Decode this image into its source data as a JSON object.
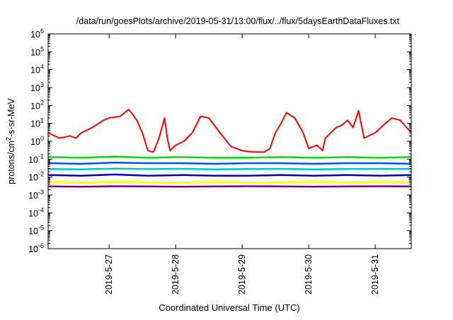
{
  "chart_data": {
    "type": "line",
    "title": "/data/run/goesPlots/archive/2019-05-31/13:00/flux/../flux/5daysEarthDataFluxes.txt",
    "xlabel": "Coordinated Universal Time (UTC)",
    "ylabel": {
      "base": "protons/cm",
      "sup": "2",
      "rest": "-s-sr-MeV"
    },
    "x_scale": "time",
    "xlim": [
      "2019-05-26 02:00",
      "2019-05-31 13:00"
    ],
    "x_ticks": [
      {
        "t": "2019-05-27 00:00",
        "label": "2019-5-27"
      },
      {
        "t": "2019-05-28 00:00",
        "label": "2019-5-28"
      },
      {
        "t": "2019-05-29 00:00",
        "label": "2019-5-29"
      },
      {
        "t": "2019-05-30 00:00",
        "label": "2019-5-30"
      },
      {
        "t": "2019-05-31 00:00",
        "label": "2019-5-31"
      }
    ],
    "y_scale": "log",
    "ylim": [
      1e-06,
      1000000.0
    ],
    "y_ticks": [
      {
        "base": "10",
        "exp": "-6",
        "value": 1e-06
      },
      {
        "base": "10",
        "exp": "-5",
        "value": 1e-05
      },
      {
        "base": "10",
        "exp": "-4",
        "value": 0.0001
      },
      {
        "base": "10",
        "exp": "-3",
        "value": 0.001
      },
      {
        "base": "10",
        "exp": "-2",
        "value": 0.01
      },
      {
        "base": "10",
        "exp": "-1",
        "value": 0.1
      },
      {
        "base": "10",
        "exp": "0",
        "value": 1
      },
      {
        "base": "10",
        "exp": "1",
        "value": 10
      },
      {
        "base": "10",
        "exp": "2",
        "value": 100
      },
      {
        "base": "10",
        "exp": "3",
        "value": 1000
      },
      {
        "base": "10",
        "exp": "4",
        "value": 10000
      },
      {
        "base": "10",
        "exp": "5",
        "value": 100000
      },
      {
        "base": "10",
        "exp": "6",
        "value": 1000000
      }
    ],
    "grid": false,
    "series": [
      {
        "color": "#ff0000",
        "x": [
          "2019-05-26 02:00",
          "2019-05-26 06:00",
          "2019-05-26 10:00",
          "2019-05-26 12:00",
          "2019-05-26 14:00",
          "2019-05-26 18:00",
          "2019-05-26 22:00",
          "2019-05-27 00:00",
          "2019-05-27 04:00",
          "2019-05-27 07:00",
          "2019-05-27 08:00",
          "2019-05-27 10:00",
          "2019-05-27 12:00",
          "2019-05-27 14:00",
          "2019-05-27 16:00",
          "2019-05-27 18:00",
          "2019-05-27 20:00",
          "2019-05-27 21:00",
          "2019-05-27 22:00",
          "2019-05-28 00:00",
          "2019-05-28 03:00",
          "2019-05-28 06:00",
          "2019-05-28 09:00",
          "2019-05-28 12:00",
          "2019-05-28 16:00",
          "2019-05-28 20:00",
          "2019-05-29 00:00",
          "2019-05-29 04:00",
          "2019-05-29 08:00",
          "2019-05-29 10:00",
          "2019-05-29 12:00",
          "2019-05-29 14:00",
          "2019-05-29 16:00",
          "2019-05-29 19:00",
          "2019-05-29 22:00",
          "2019-05-30 00:00",
          "2019-05-30 03:00",
          "2019-05-30 05:00",
          "2019-05-30 06:00",
          "2019-05-30 08:00",
          "2019-05-30 10:00",
          "2019-05-30 12:00",
          "2019-05-30 14:00",
          "2019-05-30 16:00",
          "2019-05-30 18:00",
          "2019-05-30 20:00",
          "2019-05-31 00:00",
          "2019-05-31 03:00",
          "2019-05-31 06:00",
          "2019-05-31 09:00",
          "2019-05-31 13:00"
        ],
        "y": [
          3,
          1.5,
          2,
          1.5,
          3,
          6,
          15,
          20,
          25,
          60,
          40,
          15,
          3,
          0.3,
          0.25,
          1.5,
          20,
          1.5,
          0.3,
          0.6,
          1,
          3,
          25,
          20,
          3,
          0.5,
          0.3,
          0.25,
          0.25,
          0.4,
          3,
          10,
          40,
          20,
          3,
          0.4,
          0.6,
          0.3,
          1.5,
          3,
          6,
          8,
          15,
          6,
          50,
          1.5,
          3,
          8,
          20,
          15,
          3
        ]
      },
      {
        "color": "#00e000",
        "x": [
          "2019-05-26 02:00",
          "2019-05-26 14:00",
          "2019-05-27 02:00",
          "2019-05-27 14:00",
          "2019-05-28 02:00",
          "2019-05-28 14:00",
          "2019-05-29 02:00",
          "2019-05-29 14:00",
          "2019-05-30 02:00",
          "2019-05-30 14:00",
          "2019-05-31 02:00",
          "2019-05-31 13:00"
        ],
        "y": [
          0.13,
          0.12,
          0.14,
          0.12,
          0.13,
          0.12,
          0.12,
          0.13,
          0.12,
          0.13,
          0.12,
          0.13
        ]
      },
      {
        "color": "#0050ff",
        "x": [
          "2019-05-26 02:00",
          "2019-05-26 14:00",
          "2019-05-27 02:00",
          "2019-05-27 14:00",
          "2019-05-28 02:00",
          "2019-05-28 14:00",
          "2019-05-29 02:00",
          "2019-05-29 14:00",
          "2019-05-30 02:00",
          "2019-05-30 14:00",
          "2019-05-31 02:00",
          "2019-05-31 13:00"
        ],
        "y": [
          0.06,
          0.055,
          0.065,
          0.06,
          0.06,
          0.055,
          0.06,
          0.06,
          0.055,
          0.06,
          0.06,
          0.055
        ]
      },
      {
        "color": "#00c8c8",
        "x": [
          "2019-05-26 02:00",
          "2019-05-26 14:00",
          "2019-05-27 02:00",
          "2019-05-27 14:00",
          "2019-05-28 02:00",
          "2019-05-28 14:00",
          "2019-05-29 02:00",
          "2019-05-29 14:00",
          "2019-05-30 02:00",
          "2019-05-30 14:00",
          "2019-05-31 02:00",
          "2019-05-31 13:00"
        ],
        "y": [
          0.028,
          0.027,
          0.03,
          0.028,
          0.029,
          0.027,
          0.028,
          0.029,
          0.027,
          0.028,
          0.029,
          0.028
        ]
      },
      {
        "color": "#0000c8",
        "x": [
          "2019-05-26 02:00",
          "2019-05-26 14:00",
          "2019-05-27 02:00",
          "2019-05-27 14:00",
          "2019-05-28 02:00",
          "2019-05-28 14:00",
          "2019-05-29 02:00",
          "2019-05-29 14:00",
          "2019-05-30 02:00",
          "2019-05-30 14:00",
          "2019-05-31 02:00",
          "2019-05-31 13:00"
        ],
        "y": [
          0.013,
          0.012,
          0.014,
          0.012,
          0.013,
          0.012,
          0.012,
          0.013,
          0.012,
          0.013,
          0.012,
          0.013
        ]
      },
      {
        "color": "#ffff00",
        "x": [
          "2019-05-26 02:00",
          "2019-05-26 14:00",
          "2019-05-27 02:00",
          "2019-05-27 14:00",
          "2019-05-28 02:00",
          "2019-05-28 14:00",
          "2019-05-29 02:00",
          "2019-05-29 14:00",
          "2019-05-30 02:00",
          "2019-05-30 14:00",
          "2019-05-31 02:00",
          "2019-05-31 13:00"
        ],
        "y": [
          0.0055,
          0.005,
          0.0055,
          0.0052,
          0.005,
          0.0055,
          0.005,
          0.0052,
          0.0055,
          0.005,
          0.0055,
          0.005
        ]
      },
      {
        "color": "#800080",
        "x": [
          "2019-05-26 02:00",
          "2019-05-26 14:00",
          "2019-05-27 02:00",
          "2019-05-27 14:00",
          "2019-05-28 02:00",
          "2019-05-28 14:00",
          "2019-05-29 02:00",
          "2019-05-29 14:00",
          "2019-05-30 02:00",
          "2019-05-30 14:00",
          "2019-05-31 02:00",
          "2019-05-31 13:00"
        ],
        "y": [
          0.003,
          0.0029,
          0.0031,
          0.003,
          0.0029,
          0.003,
          0.0031,
          0.003,
          0.0029,
          0.003,
          0.0031,
          0.003
        ]
      }
    ]
  }
}
